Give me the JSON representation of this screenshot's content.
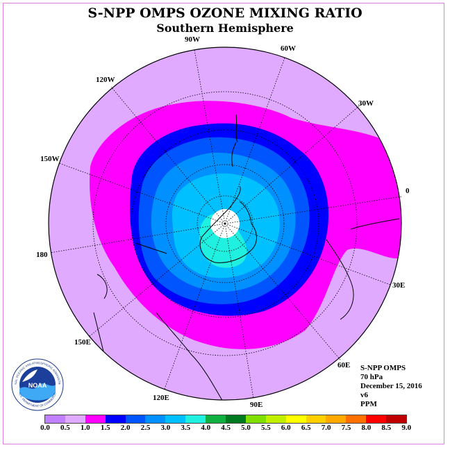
{
  "header": {
    "title": "S-NPP OMPS OZONE MIXING RATIO",
    "subtitle": "Southern Hemisphere"
  },
  "longitude_labels": [
    {
      "text": "90W"
    },
    {
      "text": "60W"
    },
    {
      "text": "30W"
    },
    {
      "text": "0"
    },
    {
      "text": "30E"
    },
    {
      "text": "60E"
    },
    {
      "text": "90E"
    },
    {
      "text": "120E"
    },
    {
      "text": "150E"
    },
    {
      "text": "180"
    },
    {
      "text": "150W"
    },
    {
      "text": "120W"
    }
  ],
  "info": {
    "instrument": "S-NPP OMPS",
    "level": "70 hPa",
    "date": "December 15, 2016",
    "version": "v6",
    "units": "PPM"
  },
  "logo": {
    "text": "NOAA",
    "ring_text": "NATIONAL OCEANIC AND ATMOSPHERIC ADMINISTRATION",
    "ring_text_bottom": "U.S. DEPARTMENT OF COMMERCE"
  },
  "colorbar": {
    "labels": [
      "0.0",
      "0.5",
      "1.0",
      "1.5",
      "2.0",
      "2.5",
      "3.0",
      "3.5",
      "4.0",
      "4.5",
      "5.0",
      "5.5",
      "6.0",
      "6.5",
      "7.0",
      "7.5",
      "8.0",
      "8.5",
      "9.0"
    ],
    "colors": [
      "#c080ff",
      "#dfaaff",
      "#ff00ff",
      "#0000ff",
      "#0055ff",
      "#0090ff",
      "#00c0ff",
      "#20f0e0",
      "#10b040",
      "#007a20",
      "#7fdf00",
      "#c0f000",
      "#ffff00",
      "#ffd000",
      "#ffa800",
      "#ff7000",
      "#ff0000",
      "#c00000",
      "#a05a30"
    ]
  },
  "chart_data": {
    "type": "heatmap",
    "projection": "polar-stereographic",
    "hemisphere": "Southern",
    "variable": "ozone mixing ratio",
    "units": "PPM",
    "pressure_level": "70 hPa",
    "date": "December 15, 2016",
    "contour_levels": [
      0.0,
      0.5,
      1.0,
      1.5,
      2.0,
      2.5,
      3.0,
      3.5,
      4.0,
      4.5,
      5.0,
      5.5,
      6.0,
      6.5,
      7.0,
      7.5,
      8.0,
      8.5,
      9.0
    ],
    "longitude_spacing_deg": 30,
    "features": {
      "pole_missing_data": true,
      "max_bin": "3.5-4.0",
      "outer_bin": "0.5-1.0"
    }
  }
}
